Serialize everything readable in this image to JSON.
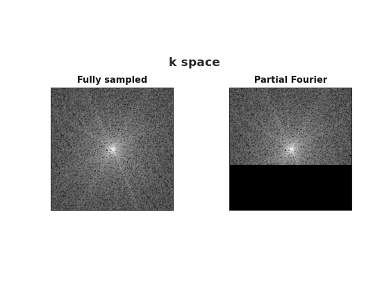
{
  "figure": {
    "title": "k space"
  },
  "panels": [
    {
      "title": "Fully sampled",
      "image": "k-space magnitude, log-scaled grayscale, bright DC center with radial streaks",
      "masked_fraction": 0
    },
    {
      "title": "Partial Fourier",
      "image": "k-space magnitude, log-scaled grayscale, lower portion zero-filled",
      "masked_fraction": 0.37
    }
  ],
  "colors": {
    "background": "#ffffff",
    "zero_fill": "#000000",
    "text": "#262626"
  }
}
